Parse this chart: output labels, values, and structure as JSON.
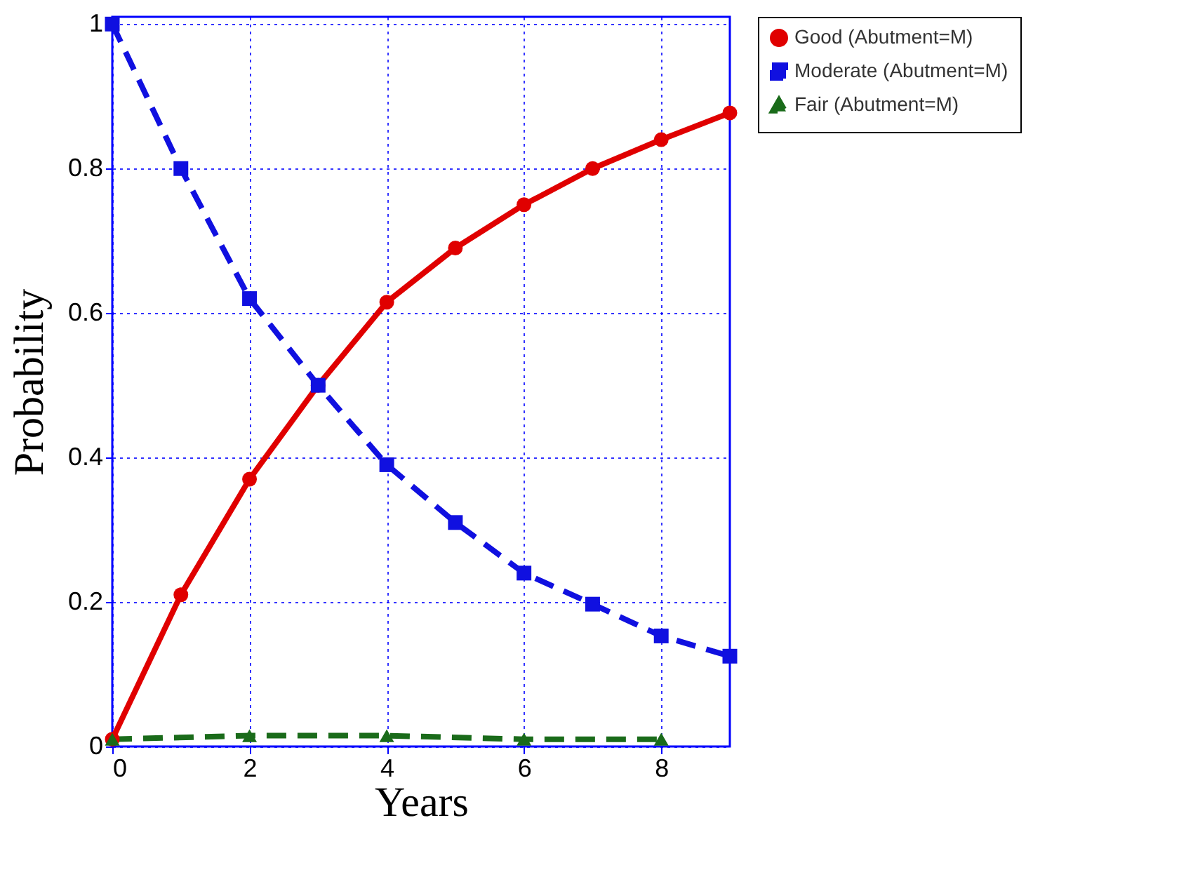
{
  "chart_data": {
    "type": "line",
    "xlabel": "Years",
    "ylabel": "Probability",
    "x": [
      0,
      1,
      2,
      3,
      4,
      5,
      6,
      7,
      8,
      9
    ],
    "series": [
      {
        "name": "Good (Abutment=M)",
        "color": "#e00000",
        "marker": "circle",
        "line_style": "solid",
        "values": [
          0.01,
          0.21,
          0.37,
          0.5,
          0.615,
          0.69,
          0.75,
          0.8,
          0.84,
          0.877
        ]
      },
      {
        "name": "Moderate (Abutment=M)",
        "color": "#1010e0",
        "marker": "square",
        "line_style": "dashed",
        "values": [
          1,
          0.8,
          0.62,
          0.5,
          0.39,
          0.31,
          0.24,
          0.197,
          0.153,
          0.125
        ]
      },
      {
        "name": "Fair (Abutment=M)",
        "color": "#1a6b1a",
        "marker": "triangle",
        "line_style": "dashed",
        "x": [
          0,
          2,
          4,
          6,
          8
        ],
        "values": [
          0.01,
          0.015,
          0.015,
          0.01,
          0.01
        ]
      }
    ],
    "xlim": [
      0,
      9
    ],
    "xticks": [
      0,
      2,
      4,
      6,
      8
    ],
    "ylim": [
      0,
      1.01
    ],
    "yticks": [
      0,
      0.2,
      0.4,
      0.6,
      0.8,
      1
    ],
    "grid": true,
    "legend": "right"
  }
}
